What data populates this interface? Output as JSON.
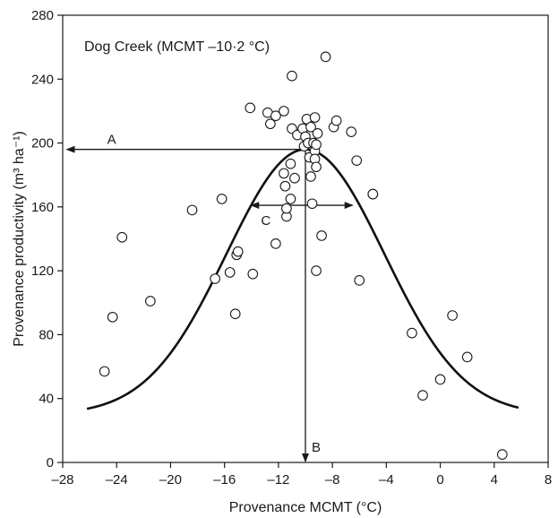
{
  "chart_data": {
    "type": "scatter",
    "title": "Dog Creek (MCMT –10·2 °C)",
    "xlabel": "Provenance MCMT (°C)",
    "ylabel": "Provenance productivity (m³ ha⁻¹)",
    "xlim": [
      -28,
      8
    ],
    "ylim": [
      0,
      280
    ],
    "xticks": [
      -28,
      -24,
      -20,
      -16,
      -12,
      -8,
      -4,
      0,
      4,
      8
    ],
    "xtick_labels": [
      "–28",
      "–24",
      "–20",
      "–16",
      "–12",
      "–8",
      "–4",
      "0",
      "4",
      "8"
    ],
    "yticks": [
      0,
      40,
      80,
      120,
      160,
      200,
      240,
      280
    ],
    "ytick_labels": [
      "0",
      "40",
      "80",
      "120",
      "160",
      "200",
      "240",
      "280"
    ],
    "grid": false,
    "points": [
      {
        "x": -24.9,
        "y": 57
      },
      {
        "x": -24.3,
        "y": 91
      },
      {
        "x": -23.6,
        "y": 141
      },
      {
        "x": -21.5,
        "y": 101
      },
      {
        "x": -18.4,
        "y": 158
      },
      {
        "x": -16.7,
        "y": 115
      },
      {
        "x": -16.2,
        "y": 165
      },
      {
        "x": -15.6,
        "y": 119
      },
      {
        "x": -15.2,
        "y": 93
      },
      {
        "x": -15.1,
        "y": 130
      },
      {
        "x": -15.0,
        "y": 132
      },
      {
        "x": -13.9,
        "y": 118
      },
      {
        "x": -14.1,
        "y": 222
      },
      {
        "x": -12.8,
        "y": 219
      },
      {
        "x": -12.6,
        "y": 212
      },
      {
        "x": -12.2,
        "y": 217
      },
      {
        "x": -11.6,
        "y": 220
      },
      {
        "x": -12.2,
        "y": 137
      },
      {
        "x": -11.4,
        "y": 154
      },
      {
        "x": -11.4,
        "y": 159
      },
      {
        "x": -11.5,
        "y": 173
      },
      {
        "x": -11.6,
        "y": 181
      },
      {
        "x": -11.1,
        "y": 165
      },
      {
        "x": -11.1,
        "y": 187
      },
      {
        "x": -10.8,
        "y": 178
      },
      {
        "x": -11.0,
        "y": 242
      },
      {
        "x": -11.0,
        "y": 209
      },
      {
        "x": -10.6,
        "y": 205
      },
      {
        "x": -10.2,
        "y": 209
      },
      {
        "x": -10.1,
        "y": 198
      },
      {
        "x": -10.0,
        "y": 204
      },
      {
        "x": -9.9,
        "y": 215
      },
      {
        "x": -9.8,
        "y": 200
      },
      {
        "x": -9.6,
        "y": 210
      },
      {
        "x": -9.7,
        "y": 191
      },
      {
        "x": -9.6,
        "y": 179
      },
      {
        "x": -9.5,
        "y": 162
      },
      {
        "x": -9.4,
        "y": 200
      },
      {
        "x": -9.3,
        "y": 216
      },
      {
        "x": -9.3,
        "y": 195
      },
      {
        "x": -9.3,
        "y": 190
      },
      {
        "x": -9.2,
        "y": 185
      },
      {
        "x": -9.1,
        "y": 206
      },
      {
        "x": -9.2,
        "y": 199
      },
      {
        "x": -9.2,
        "y": 120
      },
      {
        "x": -8.8,
        "y": 142
      },
      {
        "x": -8.5,
        "y": 254
      },
      {
        "x": -7.9,
        "y": 210
      },
      {
        "x": -7.7,
        "y": 214
      },
      {
        "x": -6.6,
        "y": 207
      },
      {
        "x": -6.2,
        "y": 189
      },
      {
        "x": -6.0,
        "y": 114
      },
      {
        "x": -5.0,
        "y": 168
      },
      {
        "x": -5.0,
        "y": 168
      },
      {
        "x": -2.1,
        "y": 81
      },
      {
        "x": -1.3,
        "y": 42
      },
      {
        "x": 0.0,
        "y": 52
      },
      {
        "x": 0.9,
        "y": 92
      },
      {
        "x": 2.0,
        "y": 66
      },
      {
        "x": 4.6,
        "y": 5
      }
    ],
    "curve": {
      "type": "gaussian",
      "peak_x": -10.0,
      "peak_y": 196,
      "baseline": 30,
      "sigma": 5.85,
      "x_range": [
        -26.2,
        5.8
      ]
    },
    "annotations": [
      {
        "label": "A",
        "description": "arrow from curve peak to y-axis at peak productivity",
        "y": 196,
        "x_from": -10.0,
        "x_to": -27.7
      },
      {
        "label": "B",
        "description": "arrow from curve peak down to x-axis at optimum MCMT",
        "x": -10.0,
        "y_from": 196,
        "y_to": 0
      },
      {
        "label": "C",
        "description": "double arrow spanning curve width",
        "y": 161,
        "x_from": -14.1,
        "x_to": -6.5
      }
    ]
  }
}
